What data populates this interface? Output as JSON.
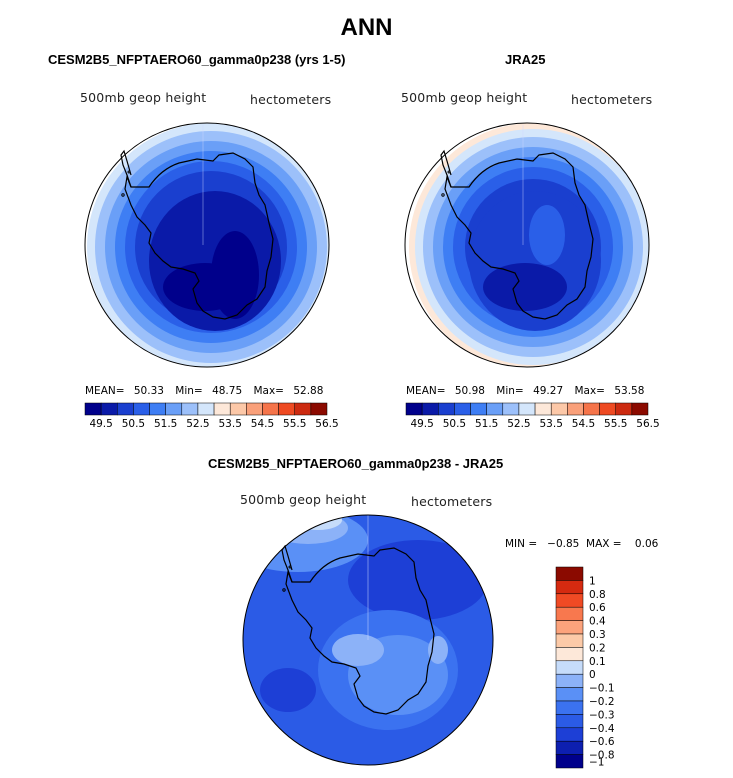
{
  "figure": {
    "title": "ANN",
    "panel_top_left": {
      "title": "CESM2B5_NFPTAERO60_gamma0p238 (yrs 1-5)",
      "variable": "500mb geop height",
      "units": "hectometers",
      "mean_label": "MEAN=",
      "mean": "50.33",
      "min_label": "Min=",
      "min": "48.75",
      "max_label": "Max=",
      "max": "52.88"
    },
    "panel_top_right": {
      "title": "JRA25",
      "variable": "500mb geop height",
      "units": "hectometers",
      "mean_label": "MEAN=",
      "mean": "50.98",
      "min_label": "Min=",
      "min": "49.27",
      "max_label": "Max=",
      "max": "53.58"
    },
    "panel_bottom": {
      "title": "CESM2B5_NFPTAERO60_gamma0p238 - JRA25",
      "variable": "500mb geop height",
      "units": "hectometers",
      "minmax_text": "MIN =   −0.85  MAX =    0.06"
    }
  },
  "colors": {
    "abs_scale": [
      "#00008b",
      "#0a1aa8",
      "#1a3fcf",
      "#2a5fe8",
      "#3e7ef4",
      "#6a9ff7",
      "#9cc0fa",
      "#d4e6fb",
      "#fde8d9",
      "#fcc8a8",
      "#f9a07a",
      "#f5744a",
      "#ee4a22",
      "#cc2a10",
      "#8b0a00"
    ],
    "diff_scale": [
      "#00008b",
      "#0d1fb0",
      "#1d3fd6",
      "#2b5be6",
      "#3b72f0",
      "#5a90f6",
      "#8cb2f8",
      "#c6dcfa",
      "#fde8d9",
      "#fccaa8",
      "#fca37c",
      "#f8784e",
      "#f04a24",
      "#d52a10",
      "#8b0a00"
    ]
  },
  "chart_data": [
    {
      "type": "heatmap",
      "title": "CESM2B5_NFPTAERO60_gamma0p238 (yrs 1-5)",
      "projection": "south polar stereographic",
      "variable": "500mb geop height",
      "units": "hectometers",
      "stats": {
        "mean": 50.33,
        "min": 48.75,
        "max": 52.88
      },
      "colorbar_levels": [
        49.5,
        50,
        50.5,
        51,
        51.5,
        52,
        52.5,
        53,
        53.5,
        54,
        54.5,
        55,
        55.5,
        56,
        56.5
      ],
      "colorbar_tick_labels": [
        "49.5",
        "50.5",
        "51.5",
        "52.5",
        "53.5",
        "54.5",
        "55.5",
        "56.5"
      ]
    },
    {
      "type": "heatmap",
      "title": "JRA25",
      "projection": "south polar stereographic",
      "variable": "500mb geop height",
      "units": "hectometers",
      "stats": {
        "mean": 50.98,
        "min": 49.27,
        "max": 53.58
      },
      "colorbar_levels": [
        49.5,
        50,
        50.5,
        51,
        51.5,
        52,
        52.5,
        53,
        53.5,
        54,
        54.5,
        55,
        55.5,
        56,
        56.5
      ],
      "colorbar_tick_labels": [
        "49.5",
        "50.5",
        "51.5",
        "52.5",
        "53.5",
        "54.5",
        "55.5",
        "56.5"
      ]
    },
    {
      "type": "heatmap",
      "title": "CESM2B5_NFPTAERO60_gamma0p238 - JRA25",
      "projection": "south polar stereographic",
      "variable": "500mb geop height",
      "units": "hectometers",
      "stats": {
        "min": -0.85,
        "max": 0.06
      },
      "colorbar_levels": [
        -1,
        -0.8,
        -0.6,
        -0.4,
        -0.3,
        -0.2,
        -0.1,
        0,
        0.1,
        0.2,
        0.3,
        0.4,
        0.6,
        0.8,
        1
      ],
      "colorbar_tick_labels": [
        "1",
        "0.8",
        "0.6",
        "0.4",
        "0.3",
        "0.2",
        "0.1",
        "0",
        "−0.1",
        "−0.2",
        "−0.3",
        "−0.4",
        "−0.6",
        "−0.8",
        "−1"
      ]
    }
  ]
}
